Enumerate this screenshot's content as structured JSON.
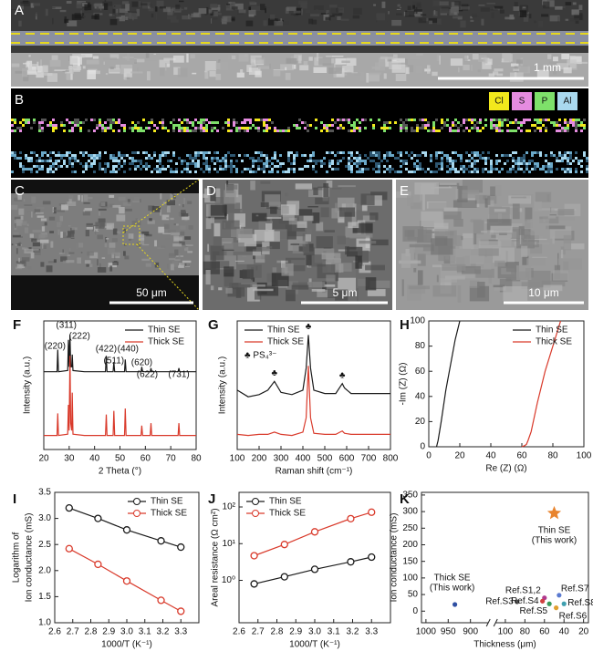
{
  "panels": {
    "A": {
      "label": "A",
      "scale": "1 mm"
    },
    "B": {
      "label": "B",
      "legend": [
        "Cl",
        "S",
        "P",
        "Al"
      ],
      "colors": [
        "#f2e81c",
        "#e58ce0",
        "#7ee06a",
        "#a9d8ee"
      ]
    },
    "C": {
      "label": "C",
      "scale": "50 μm"
    },
    "D": {
      "label": "D",
      "scale": "5 μm"
    },
    "E": {
      "label": "E",
      "scale": "10 μm"
    }
  },
  "chart_data": [
    {
      "type": "line",
      "panel_label": "F",
      "xlabel": "2 Theta (°)",
      "ylabel": "Intensity (a.u.)",
      "xlim": [
        20,
        80
      ],
      "xticks": [
        20,
        30,
        40,
        50,
        60,
        70,
        80
      ],
      "legend": "upper right",
      "series": [
        {
          "name": "Thin SE",
          "color": "#1a1a1a",
          "x": [
            20,
            25.2,
            25.5,
            25.8,
            29.4,
            29.7,
            30.0,
            30.3,
            30.6,
            31.0,
            31.2,
            31.5,
            36,
            44.3,
            44.6,
            44.9,
            47.3,
            47.6,
            47.9,
            51.8,
            52.1,
            52.4,
            58.3,
            58.6,
            58.9,
            61.9,
            62.2,
            62.5,
            72.9,
            73.2,
            73.5,
            80
          ],
          "values": [
            62,
            62,
            80,
            62,
            63,
            88,
            66,
            92,
            66,
            66,
            76,
            63,
            62,
            62,
            75,
            62,
            62,
            70,
            62,
            62,
            72,
            62,
            62,
            66,
            62,
            62,
            65,
            62,
            62,
            65,
            62,
            62
          ]
        },
        {
          "name": "Thick SE",
          "color": "#d93a2b",
          "x": [
            20,
            25.2,
            25.5,
            25.8,
            29.4,
            29.7,
            30.0,
            30.3,
            30.6,
            31.0,
            31.2,
            31.5,
            36,
            44.3,
            44.6,
            44.9,
            47.3,
            47.6,
            47.9,
            51.8,
            52.1,
            52.4,
            58.3,
            58.6,
            58.9,
            61.9,
            62.2,
            62.5,
            72.9,
            73.2,
            73.5,
            80
          ],
          "values": [
            10,
            10,
            28,
            10,
            11,
            35,
            14,
            75,
            20,
            14,
            45,
            11,
            10,
            10,
            27,
            10,
            10,
            30,
            10,
            10,
            32,
            10,
            10,
            18,
            10,
            10,
            20,
            10,
            10,
            20,
            10,
            10
          ]
        }
      ],
      "annotations": [
        {
          "text": "(220)",
          "x": 25.5
        },
        {
          "text": "(311)",
          "x": 30.3
        },
        {
          "text": "(222)",
          "x": 31.2
        },
        {
          "text": "(422)",
          "x": 44.6
        },
        {
          "text": "(511)",
          "x": 47.6
        },
        {
          "text": "(440)",
          "x": 52.1
        },
        {
          "text": "(620)",
          "x": 58.6
        },
        {
          "text": "(622)",
          "x": 62.2
        },
        {
          "text": "(731)",
          "x": 73.2
        }
      ]
    },
    {
      "type": "line",
      "panel_label": "G",
      "xlabel": "Raman shift (cm⁻¹)",
      "ylabel": "Intensity (a.u.)",
      "xlim": [
        100,
        800
      ],
      "xticks": [
        100,
        200,
        300,
        400,
        500,
        600,
        700,
        800
      ],
      "legend": "upper left",
      "legend_note": "♣ PS₄³⁻",
      "series": [
        {
          "name": "Thin SE",
          "color": "#1a1a1a",
          "x": [
            100,
            150,
            200,
            240,
            270,
            300,
            350,
            400,
            415,
            425,
            435,
            450,
            500,
            550,
            570,
            580,
            590,
            620,
            700,
            800
          ],
          "values": [
            50,
            44,
            46,
            50,
            58,
            48,
            46,
            50,
            70,
            100,
            70,
            50,
            47,
            47,
            53,
            56,
            52,
            47,
            47,
            47
          ]
        },
        {
          "name": "Thick SE",
          "color": "#d93a2b",
          "x": [
            100,
            150,
            200,
            240,
            270,
            300,
            350,
            400,
            415,
            425,
            435,
            450,
            500,
            550,
            570,
            580,
            590,
            620,
            700,
            800
          ],
          "values": [
            10,
            9,
            10,
            10,
            12,
            10,
            9,
            12,
            25,
            72,
            25,
            11,
            10,
            10,
            12,
            13,
            11,
            10,
            10,
            10
          ]
        }
      ],
      "annotations": [
        {
          "text": "♣",
          "x": 270
        },
        {
          "text": "♣",
          "x": 425
        },
        {
          "text": "♣",
          "x": 580
        }
      ]
    },
    {
      "type": "line",
      "panel_label": "H",
      "xlabel": "Re (Z) (Ω)",
      "ylabel": "-Im (Z) (Ω)",
      "xlim": [
        0,
        100
      ],
      "ylim": [
        0,
        100
      ],
      "xticks": [
        0,
        20,
        40,
        60,
        80,
        100
      ],
      "yticks": [
        0,
        20,
        40,
        60,
        80,
        100
      ],
      "legend": "upper right",
      "series": [
        {
          "name": "Thin SE",
          "color": "#1a1a1a",
          "x": [
            5,
            6,
            8,
            11,
            14,
            17,
            20
          ],
          "values": [
            0,
            5,
            20,
            45,
            65,
            85,
            100
          ]
        },
        {
          "name": "Thick SE",
          "color": "#d93a2b",
          "x": [
            60,
            61,
            62,
            63,
            64,
            66,
            70,
            75,
            80,
            85
          ],
          "values": [
            0,
            0.5,
            1,
            2,
            5,
            12,
            35,
            60,
            80,
            100
          ]
        }
      ]
    },
    {
      "type": "line",
      "panel_label": "I",
      "markers": true,
      "xlabel": "1000/T (K⁻¹)",
      "ylabel": [
        "Logarithm of",
        "Ion conductance (mS)"
      ],
      "xlim": [
        2.6,
        3.4
      ],
      "ylim": [
        1.0,
        3.5
      ],
      "xticks": [
        2.6,
        2.7,
        2.8,
        2.9,
        {
          "value": 3,
          "label": "3.0"
        },
        3.1,
        3.2,
        3.3
      ],
      "yticks": [
        {
          "value": 1,
          "label": "1.0"
        },
        1.5,
        {
          "value": 2,
          "label": "2.0"
        },
        2.5,
        {
          "value": 3,
          "label": "3.0"
        },
        3.5
      ],
      "legend": "upper right",
      "x": [
        2.68,
        2.84,
        3.0,
        3.19,
        3.3
      ],
      "series": [
        {
          "name": "Thin SE",
          "color": "#1a1a1a",
          "values": [
            3.2,
            3.0,
            2.78,
            2.57,
            2.45
          ]
        },
        {
          "name": "Thick SE",
          "color": "#d93a2b",
          "values": [
            2.42,
            2.12,
            1.8,
            1.43,
            1.22
          ]
        }
      ]
    },
    {
      "type": "line",
      "panel_label": "J",
      "markers": true,
      "log_y": true,
      "xlabel": "1000/T (K⁻¹)",
      "ylabel": "Areal resistance (Ω cm²)",
      "xlim": [
        2.6,
        3.4
      ],
      "ylim": [
        0.07,
        250
      ],
      "xticks": [
        2.6,
        2.7,
        2.8,
        2.9,
        {
          "value": 3,
          "label": "3.0"
        },
        3.1,
        3.2,
        3.3
      ],
      "yticks": [
        {
          "value": 1,
          "label": "10⁰"
        },
        {
          "value": 10,
          "label": "10¹"
        },
        {
          "value": 100,
          "label": "10²"
        }
      ],
      "legend": "upper left",
      "x": [
        2.68,
        2.84,
        3.0,
        3.19,
        3.3
      ],
      "series": [
        {
          "name": "Thin SE",
          "color": "#1a1a1a",
          "values": [
            0.8,
            1.25,
            2.0,
            3.2,
            4.3
          ]
        },
        {
          "name": "Thick SE",
          "color": "#d93a2b",
          "values": [
            4.7,
            9.5,
            21,
            48,
            72
          ]
        }
      ]
    },
    {
      "type": "scatter",
      "panel_label": "K",
      "xlabel": "Thickness (μm)",
      "ylabel": "Ion conductance (mS)",
      "xlim": [
        1010,
        15
      ],
      "xbreak": [
        860,
        110
      ],
      "ylim": [
        -35,
        358
      ],
      "xticks": [
        1000,
        950,
        900,
        100,
        80,
        60,
        40,
        20
      ],
      "yticks": [
        0,
        50,
        100,
        150,
        200,
        250,
        300,
        350
      ],
      "points": [
        {
          "label": [
            "Thin SE",
            "(This work)"
          ],
          "x": 50,
          "y": 295,
          "color": "#e8842e",
          "marker": "star"
        },
        {
          "label": [
            "Thick SE",
            "(This work)"
          ],
          "x": 935,
          "y": 20,
          "color": "#2f4fa3",
          "marker": "circle"
        },
        {
          "label": "Ref.S1,2",
          "x": 60,
          "y": 40,
          "color": "#b03a8e",
          "marker": "circle"
        },
        {
          "label": "Ref.S3",
          "x": 88,
          "y": 28,
          "color": "#555555",
          "marker": "circle"
        },
        {
          "label": "Ref.S4",
          "x": 62,
          "y": 30,
          "color": "#d04040",
          "marker": "circle"
        },
        {
          "label": "Ref.S5",
          "x": 55,
          "y": 22,
          "color": "#3a9a5a",
          "marker": "circle"
        },
        {
          "label": "Ref.S6",
          "x": 48,
          "y": 10,
          "color": "#e0a030",
          "marker": "circle"
        },
        {
          "label": "Ref.S7",
          "x": 45,
          "y": 48,
          "color": "#5a7ad0",
          "marker": "circle"
        },
        {
          "label": "Ref.S8",
          "x": 40,
          "y": 22,
          "color": "#40a0b0",
          "marker": "circle"
        }
      ]
    }
  ]
}
